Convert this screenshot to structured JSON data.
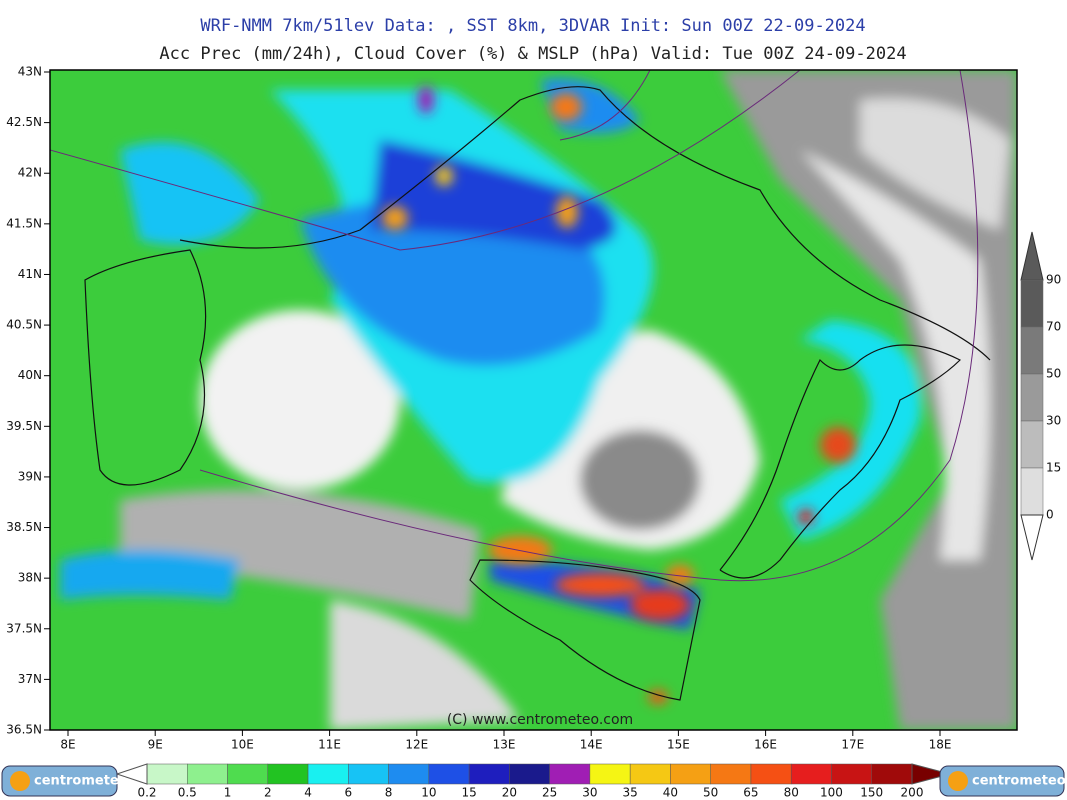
{
  "header": {
    "title": "WRF-NMM 7km/51lev  Data: , SST 8km, 3DVAR  Init: Sun 00Z 22-09-2024",
    "subtitle": "Acc Prec (mm/24h), Cloud Cover (%) & MSLP (hPa)  Valid: Tue 00Z 24-09-2024"
  },
  "map": {
    "lat_labels": [
      "43N",
      "42.5N",
      "42N",
      "41.5N",
      "41N",
      "40.5N",
      "40N",
      "39.5N",
      "39N",
      "38.5N",
      "38N",
      "37.5N",
      "37N",
      "36.5N"
    ],
    "lon_labels": [
      "8E",
      "9E",
      "10E",
      "11E",
      "12E",
      "13E",
      "14E",
      "15E",
      "16E",
      "17E",
      "18E"
    ],
    "credit": "(C) www.centrometeo.com"
  },
  "cloud_scale": {
    "labels": [
      "90",
      "70",
      "50",
      "30",
      "15",
      "0"
    ],
    "colors": [
      "#5a5a5a",
      "#7a7a7a",
      "#9a9a9a",
      "#bcbcbc",
      "#dedede"
    ]
  },
  "precip_scale": {
    "labels": [
      "0.2",
      "0.5",
      "1",
      "2",
      "4",
      "6",
      "8",
      "10",
      "15",
      "20",
      "25",
      "30",
      "35",
      "40",
      "50",
      "65",
      "80",
      "100",
      "150",
      "200"
    ],
    "colors": [
      "#c8f7c8",
      "#8ef08e",
      "#4fdc4f",
      "#22c322",
      "#19f0f0",
      "#17c3f5",
      "#1e8cf0",
      "#1e50e6",
      "#1e1ebe",
      "#1a1a8c",
      "#a01eb4",
      "#f5f514",
      "#f5c814",
      "#f5a014",
      "#f57814",
      "#f55014",
      "#e61e1e",
      "#c81414",
      "#a00a0a",
      "#780000"
    ]
  },
  "logo": {
    "left": "centrometeo",
    "right": "centrometeo"
  }
}
